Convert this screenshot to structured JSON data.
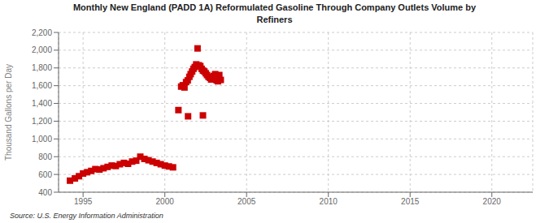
{
  "chart_data": {
    "type": "scatter",
    "title": "Monthly New England (PADD 1A) Reformulated Gasoline Through Company Outlets Volume by\nRefiners",
    "y_label": "Thousand Gallons per Day",
    "source": "Source: U.S. Energy Information Administration",
    "color": "#cc0000",
    "marker": "square",
    "grid": true,
    "xlim": [
      1993.5,
      2022.5
    ],
    "ylim": [
      400,
      2200
    ],
    "xticks": [
      1995,
      2000,
      2005,
      2010,
      2015,
      2020
    ],
    "yticks": [
      400,
      600,
      800,
      {
        "value": 1000,
        "label": "1,000"
      },
      {
        "value": 1200,
        "label": "1,200"
      },
      {
        "value": 1400,
        "label": "1,400"
      },
      {
        "value": 1600,
        "label": "1,600"
      },
      {
        "value": 1800,
        "label": "1,800"
      },
      {
        "value": 2000,
        "label": "2,000"
      },
      {
        "value": 2200,
        "label": "2,200"
      }
    ],
    "x": [
      1994.2,
      1994.5,
      1994.75,
      1995.0,
      1995.25,
      1995.5,
      1995.75,
      1996.0,
      1996.25,
      1996.5,
      1996.75,
      1997.0,
      1997.25,
      1997.5,
      1997.75,
      1998.0,
      1998.25,
      1998.5,
      1998.75,
      1999.0,
      1999.25,
      1999.5,
      1999.75,
      2000.0,
      2000.25,
      2000.5,
      2000.83,
      2001.0,
      2001.1,
      2001.2,
      2001.3,
      2001.4,
      2001.5,
      2001.58,
      2001.67,
      2001.75,
      2001.83,
      2001.92,
      2002.0,
      2002.08,
      2002.17,
      2002.25,
      2002.33,
      2002.42,
      2002.5,
      2002.58,
      2002.67,
      2002.75,
      2002.83,
      2003.0,
      2003.08,
      2003.17,
      2003.25,
      2003.33,
      2003.42,
      2001.42,
      2002.33
    ],
    "values": [
      530,
      555,
      580,
      610,
      625,
      640,
      660,
      655,
      670,
      685,
      700,
      695,
      715,
      730,
      720,
      745,
      755,
      800,
      775,
      760,
      745,
      730,
      715,
      700,
      690,
      680,
      1325,
      1590,
      1605,
      1580,
      1640,
      1660,
      1700,
      1730,
      1760,
      1790,
      1810,
      1840,
      2020,
      1830,
      1820,
      1790,
      1770,
      1760,
      1740,
      1720,
      1700,
      1690,
      1670,
      1710,
      1730,
      1660,
      1650,
      1720,
      1665,
      1255,
      1265
    ]
  }
}
